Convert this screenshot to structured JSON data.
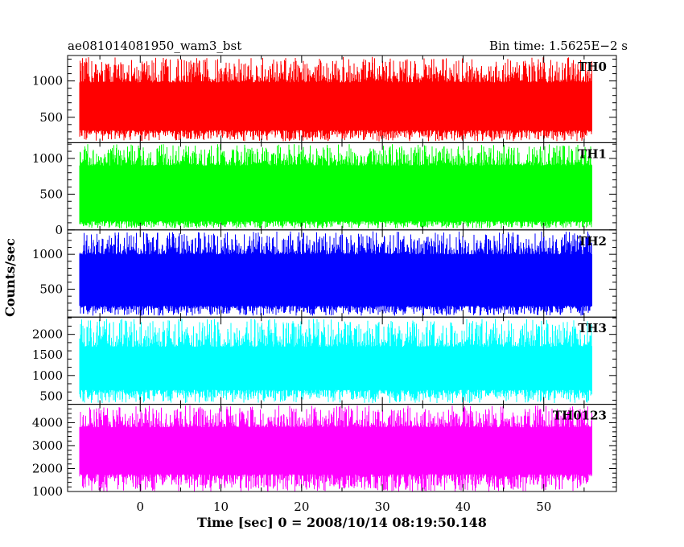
{
  "header": {
    "source": "ae081014081950_wam3_bst",
    "bin_time": "Bin time: 1.5625E−2 s"
  },
  "chart_data": {
    "type": "line",
    "title": "ae081014081950_wam3_bst",
    "subtitle": "Bin time: 1.5625E−2 s",
    "xlabel": "Time [sec] 0 = 2008/10/14 08:19:50.148",
    "ylabel": "Counts/sec",
    "xlim": [
      -9,
      59
    ],
    "x_data_range": [
      -7.5,
      56
    ],
    "x_ticks": [
      0,
      10,
      20,
      30,
      40,
      50
    ],
    "grid": false,
    "panels": [
      {
        "name": "TH0",
        "color": "#ff0000",
        "ylim": [
          150,
          1350
        ],
        "y_ticks": [
          500,
          1000
        ],
        "low_typical": 320,
        "high_typical": 980,
        "max": 1330,
        "min": 170
      },
      {
        "name": "TH1",
        "color": "#00ff00",
        "ylim": [
          0,
          1220
        ],
        "y_ticks": [
          0,
          500,
          1000
        ],
        "low_typical": 120,
        "high_typical": 900,
        "max": 1200,
        "min": 20
      },
      {
        "name": "TH2",
        "color": "#0000ff",
        "ylim": [
          100,
          1350
        ],
        "y_ticks": [
          500,
          1000
        ],
        "low_typical": 260,
        "high_typical": 1000,
        "max": 1330,
        "min": 120
      },
      {
        "name": "TH3",
        "color": "#00ffff",
        "ylim": [
          300,
          2420
        ],
        "y_ticks": [
          500,
          1000,
          1500,
          2000
        ],
        "low_typical": 650,
        "high_typical": 1700,
        "max": 2380,
        "min": 330
      },
      {
        "name": "TH0123",
        "color": "#ff00ff",
        "ylim": [
          1000,
          4800
        ],
        "y_ticks": [
          1000,
          2000,
          3000,
          4000
        ],
        "low_typical": 1750,
        "high_typical": 3800,
        "max": 4750,
        "min": 1000
      }
    ]
  }
}
